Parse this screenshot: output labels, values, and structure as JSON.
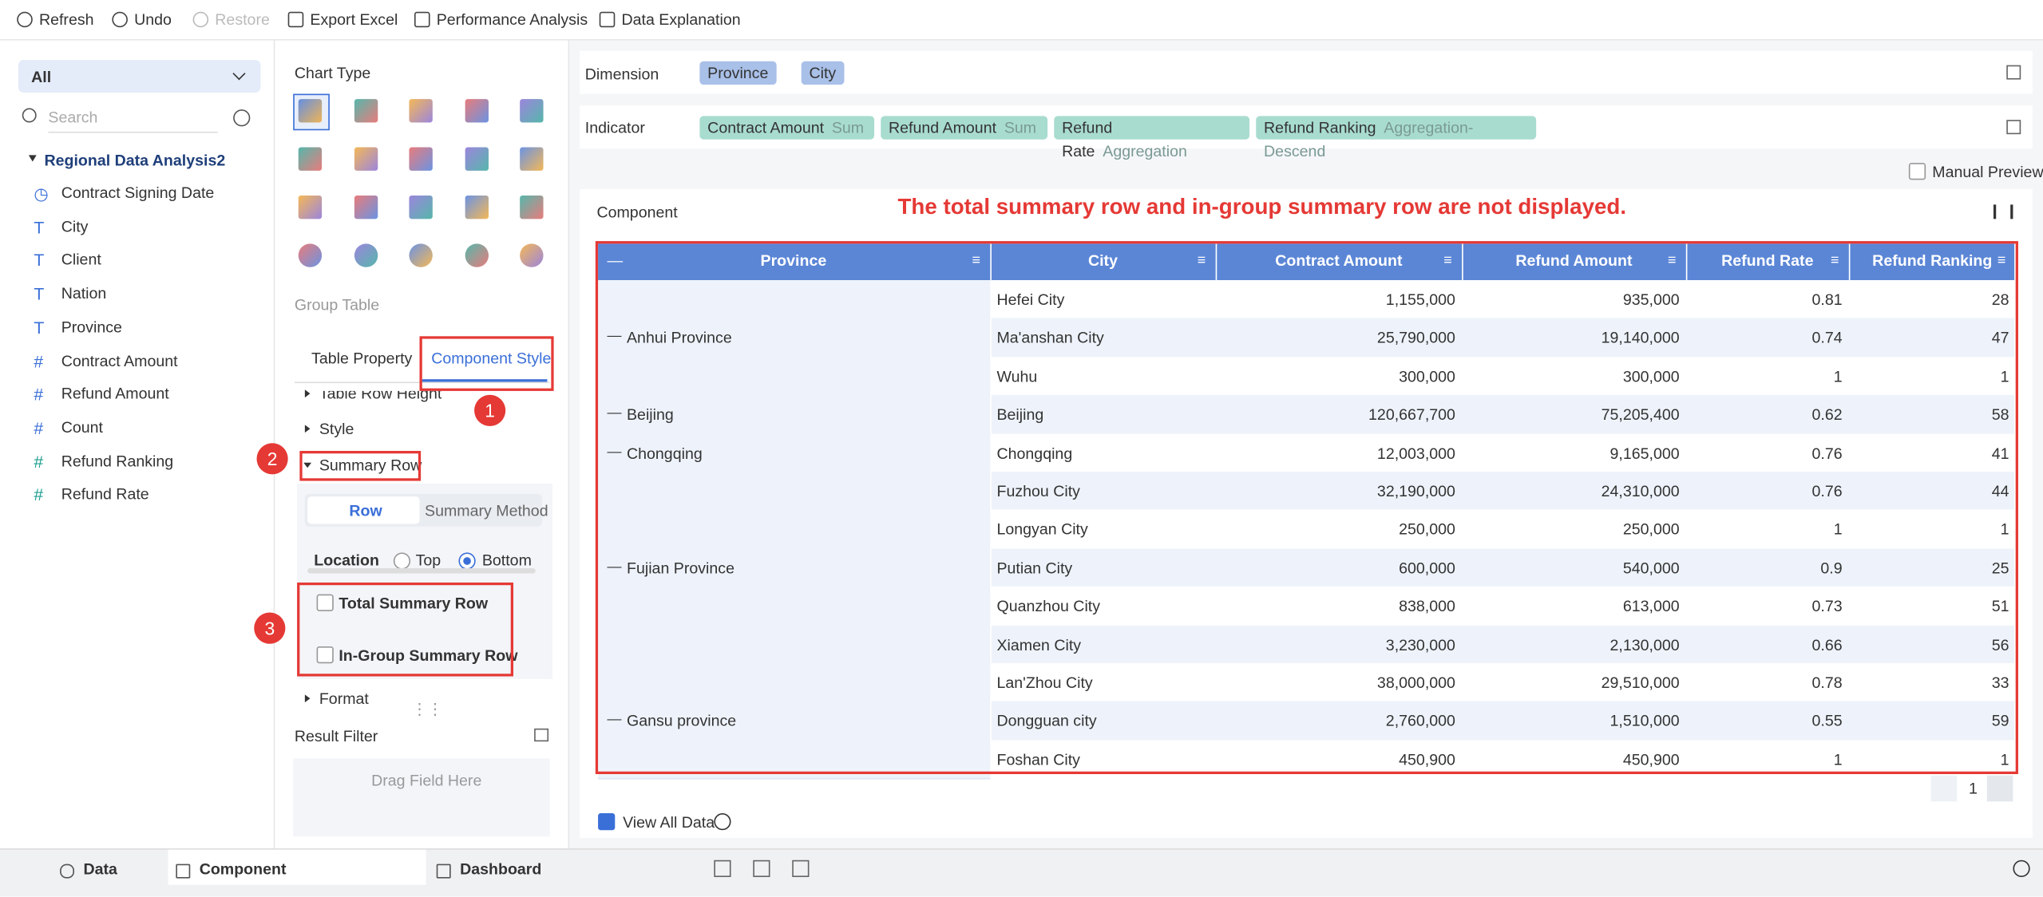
{
  "toolbar": [
    "Refresh",
    "Undo",
    "Restore",
    "Export Excel",
    "Performance Analysis",
    "Data Explanation"
  ],
  "left": {
    "selector": "All",
    "search": "Search",
    "dataset": "Regional Data Analysis2",
    "fields": [
      {
        "name": "Contract Signing Date",
        "type": "date"
      },
      {
        "name": "City",
        "type": "text"
      },
      {
        "name": "Client",
        "type": "text"
      },
      {
        "name": "Nation",
        "type": "text"
      },
      {
        "name": "Province",
        "type": "text"
      },
      {
        "name": "Contract Amount",
        "type": "number"
      },
      {
        "name": "Refund Amount",
        "type": "number"
      },
      {
        "name": "Count",
        "type": "number"
      },
      {
        "name": "Refund Ranking",
        "type": "calc"
      },
      {
        "name": "Refund Rate",
        "type": "calc"
      }
    ]
  },
  "middle": {
    "chart_type": "Chart Type",
    "group_table": "Group Table",
    "tabs": [
      "Table Property",
      "Component Style"
    ],
    "sections": [
      "Table Row Height",
      "Style",
      "Summary Row",
      "Format"
    ],
    "subtabs": [
      "Row",
      "Summary Method"
    ],
    "location": "Location",
    "options": [
      "Top",
      "Bottom"
    ],
    "checkboxes": [
      "Total Summary Row",
      "In-Group Summary Row"
    ],
    "result_filter": "Result Filter",
    "drag": "Drag Field Here",
    "badges": [
      "1",
      "2",
      "3"
    ]
  },
  "right": {
    "dimension": "Dimension",
    "dimensions": [
      "Province",
      "City"
    ],
    "indicator": "Indicator",
    "indicators": [
      {
        "name": "Contract Amount",
        "agg": "Sum"
      },
      {
        "name": "Refund Amount",
        "agg": "Sum"
      },
      {
        "name": "Refund Rate",
        "agg": "Aggregation"
      },
      {
        "name": "Refund Ranking",
        "agg": "Aggregation-Descend"
      }
    ],
    "manual_preview": "Manual Preview",
    "component": "Component",
    "annotation": "The total summary row and in-group summary row are not displayed.",
    "table": {
      "columns": [
        "Province",
        "City",
        "Contract Amount",
        "Refund Amount",
        "Refund Rate",
        "Refund Ranking"
      ],
      "groups": [
        {
          "province": "Anhui Province",
          "rows": [
            [
              "Hefei City",
              "1,155,000",
              "935,000",
              "0.81",
              "28"
            ],
            [
              "Ma'anshan City",
              "25,790,000",
              "19,140,000",
              "0.74",
              "47"
            ],
            [
              "Wuhu",
              "300,000",
              "300,000",
              "1",
              "1"
            ]
          ]
        },
        {
          "province": "Beijing",
          "rows": [
            [
              "Beijing",
              "120,667,700",
              "75,205,400",
              "0.62",
              "58"
            ]
          ]
        },
        {
          "province": "Chongqing",
          "rows": [
            [
              "Chongqing",
              "12,003,000",
              "9,165,000",
              "0.76",
              "41"
            ]
          ]
        },
        {
          "province": "Fujian Province",
          "rows": [
            [
              "Fuzhou City",
              "32,190,000",
              "24,310,000",
              "0.76",
              "44"
            ],
            [
              "Longyan City",
              "250,000",
              "250,000",
              "1",
              "1"
            ],
            [
              "Putian City",
              "600,000",
              "540,000",
              "0.9",
              "25"
            ],
            [
              "Quanzhou City",
              "838,000",
              "613,000",
              "0.73",
              "51"
            ],
            [
              "Xiamen City",
              "3,230,000",
              "2,130,000",
              "0.66",
              "56"
            ]
          ]
        },
        {
          "province": "Gansu province",
          "rows": [
            [
              "Lan'Zhou City",
              "38,000,000",
              "29,510,000",
              "0.78",
              "33"
            ],
            [
              "Dongguan city",
              "2,760,000",
              "1,510,000",
              "0.55",
              "59"
            ],
            [
              "Foshan City",
              "450,900",
              "450,900",
              "1",
              "1"
            ]
          ]
        }
      ]
    },
    "page": "1",
    "view_all": "View All Data"
  },
  "bottom": [
    "Data",
    "Component",
    "Dashboard"
  ]
}
